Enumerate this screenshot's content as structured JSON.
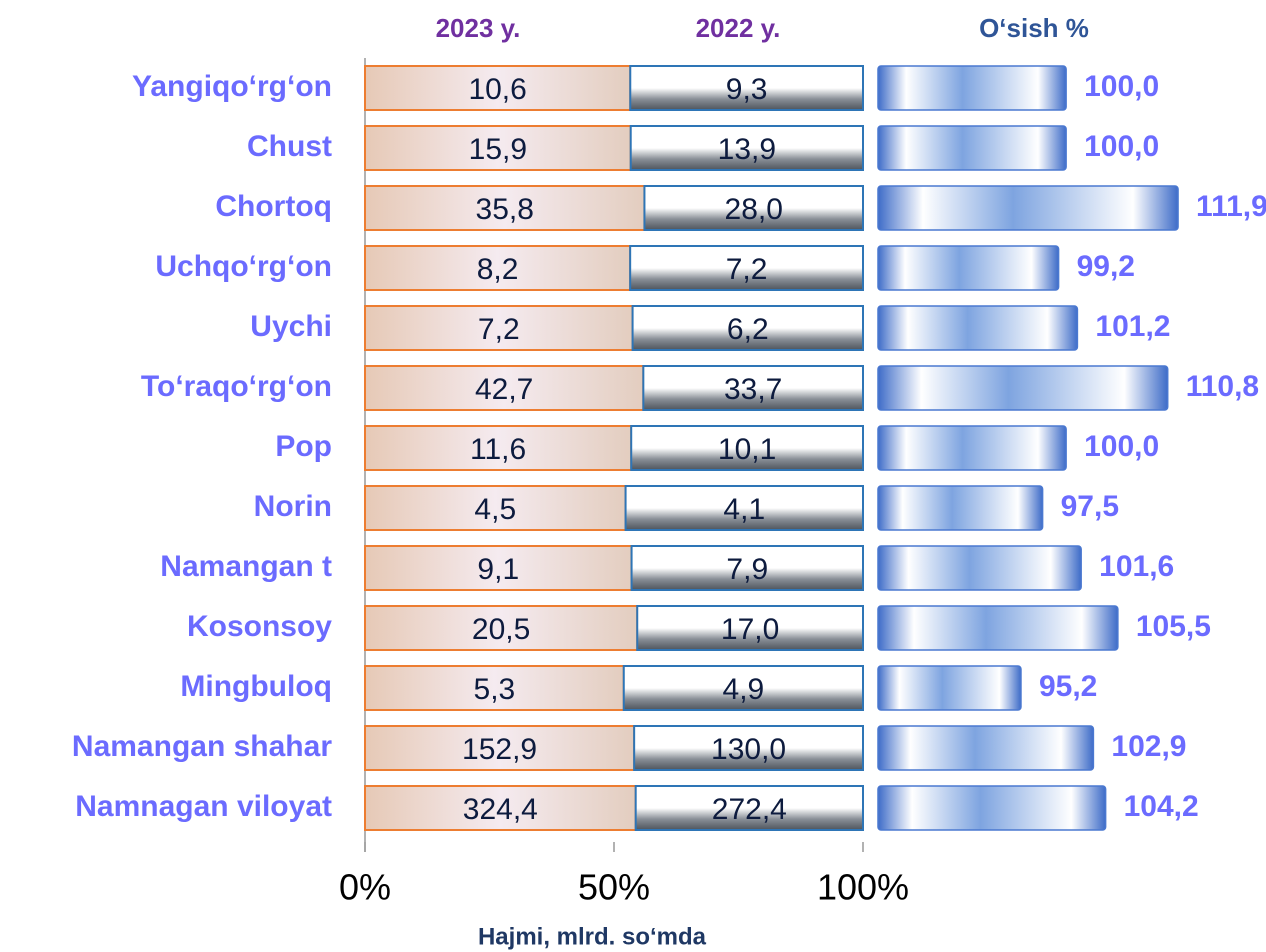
{
  "chart_data": [
    {
      "type": "bar",
      "orientation": "horizontal",
      "stacking": "percent",
      "categories": [
        "Yangiqo‘rg‘on",
        "Chust",
        "Chortoq",
        "Uchqo‘rg‘on",
        "Uychi",
        "To‘raqo‘rg‘on",
        "Pop",
        "Norin",
        "Namangan t",
        "Kosonsoy",
        "Mingbuloq",
        "Namangan shahar",
        "Namnagan viloyat"
      ],
      "series": [
        {
          "name": "2023 y.",
          "color": "#f0dcd0",
          "values": [
            10.6,
            15.9,
            35.8,
            8.2,
            7.2,
            42.7,
            11.6,
            4.5,
            9.1,
            20.5,
            5.3,
            152.9,
            324.4
          ],
          "value_labels": [
            "10,6",
            "15,9",
            "35,8",
            "8,2",
            "7,2",
            "42,7",
            "11,6",
            "4,5",
            "9,1",
            "20,5",
            "5,3",
            "152,9",
            "324,4"
          ]
        },
        {
          "name": "2022 y.",
          "color": "#6b7178",
          "values": [
            9.3,
            13.9,
            28.0,
            7.2,
            6.2,
            33.7,
            10.1,
            4.1,
            7.9,
            17.0,
            4.9,
            130.0,
            272.4
          ],
          "value_labels": [
            "9,3",
            "13,9",
            "28,0",
            "7,2",
            "6,2",
            "33,7",
            "10,1",
            "4,1",
            "7,9",
            "17,0",
            "4,9",
            "130,0",
            "272,4"
          ]
        }
      ],
      "xlim": [
        0,
        100
      ],
      "xticks": [
        {
          "value": 0,
          "label": "0%"
        },
        {
          "value": 50,
          "label": "50%"
        },
        {
          "value": 100,
          "label": "100%"
        }
      ],
      "xlabel": "Hajmi, mlrd. so‘mda"
    },
    {
      "type": "bar",
      "orientation": "horizontal",
      "title": "O‘sish %",
      "color": "#4a78d0",
      "values": [
        100.0,
        100.0,
        111.9,
        99.2,
        101.2,
        110.8,
        100.0,
        97.5,
        101.6,
        105.5,
        95.2,
        102.9,
        104.2
      ],
      "value_labels": [
        "100,0",
        "100,0",
        "111,9",
        "99,2",
        "101,2",
        "110,8",
        "100,0",
        "97,5",
        "101,6",
        "105,5",
        "95,2",
        "102,9",
        "104,2"
      ],
      "xlim": [
        80,
        112
      ]
    }
  ]
}
